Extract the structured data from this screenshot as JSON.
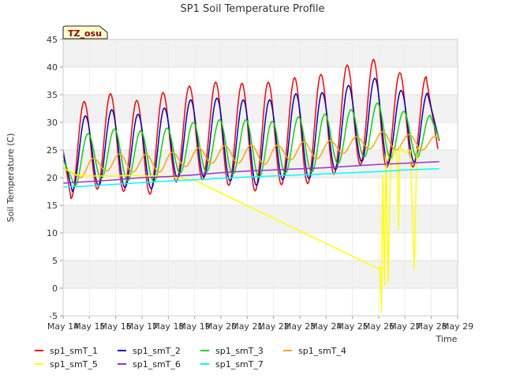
{
  "chart_data": {
    "type": "line",
    "title": "SP1 Soil Temperature Profile",
    "xlabel": "Time",
    "ylabel": "Soil Temperature (C)",
    "ylim": [
      -5,
      45
    ],
    "yticks": [
      -5,
      0,
      5,
      10,
      15,
      20,
      25,
      30,
      35,
      40,
      45
    ],
    "xlim": [
      14,
      29
    ],
    "xticks": [
      {
        "v": 14,
        "label": "May 14"
      },
      {
        "v": 15,
        "label": "May 15"
      },
      {
        "v": 16,
        "label": "May 16"
      },
      {
        "v": 17,
        "label": "May 17"
      },
      {
        "v": 18,
        "label": "May 18"
      },
      {
        "v": 19,
        "label": "May 19"
      },
      {
        "v": 20,
        "label": "May 20"
      },
      {
        "v": 21,
        "label": "May 21"
      },
      {
        "v": 22,
        "label": "May 22"
      },
      {
        "v": 23,
        "label": "May 23"
      },
      {
        "v": 24,
        "label": "May 24"
      },
      {
        "v": 25,
        "label": "May 25"
      },
      {
        "v": 26,
        "label": "May 26"
      },
      {
        "v": 27,
        "label": "May 27"
      },
      {
        "v": 28,
        "label": "May 28"
      },
      {
        "v": 29,
        "label": "May 29"
      }
    ],
    "site_label": "TZ_osu",
    "grid": "horizontal bands",
    "legend_position": "bottom",
    "series": [
      {
        "name": "sp1_smT_1",
        "color": "#ff0000",
        "daily_peaks": [
          [
            14.8,
            33.8
          ],
          [
            15.8,
            35.2
          ],
          [
            16.8,
            34.0
          ],
          [
            17.8,
            35.4
          ],
          [
            18.8,
            36.6
          ],
          [
            19.8,
            37.3
          ],
          [
            20.8,
            37.1
          ],
          [
            21.8,
            37.3
          ],
          [
            22.8,
            38.1
          ],
          [
            23.8,
            38.7
          ],
          [
            24.8,
            40.4
          ],
          [
            25.8,
            41.4
          ],
          [
            26.8,
            39.0
          ],
          [
            27.8,
            38.3
          ]
        ],
        "daily_troughs": [
          [
            14.3,
            16.2
          ],
          [
            15.3,
            17.9
          ],
          [
            16.3,
            17.5
          ],
          [
            17.3,
            17.0
          ],
          [
            18.3,
            19.2
          ],
          [
            19.3,
            19.6
          ],
          [
            20.3,
            18.6
          ],
          [
            21.3,
            17.6
          ],
          [
            22.3,
            18.7
          ],
          [
            23.3,
            18.9
          ],
          [
            24.3,
            20.6
          ],
          [
            25.3,
            22.3
          ],
          [
            26.3,
            21.8
          ],
          [
            27.3,
            21.9
          ]
        ],
        "end": [
          28.25,
          25.2
        ]
      },
      {
        "name": "sp1_smT_2",
        "color": "#0000cc",
        "daily_peaks": [
          [
            14.85,
            31.2
          ],
          [
            15.85,
            32.3
          ],
          [
            16.85,
            31.5
          ],
          [
            17.85,
            32.6
          ],
          [
            18.85,
            34.1
          ],
          [
            19.85,
            34.4
          ],
          [
            20.85,
            34.1
          ],
          [
            21.85,
            34.1
          ],
          [
            22.85,
            35.2
          ],
          [
            23.85,
            35.4
          ],
          [
            24.85,
            36.7
          ],
          [
            25.85,
            38.0
          ],
          [
            26.85,
            35.8
          ],
          [
            27.85,
            35.3
          ]
        ],
        "daily_troughs": [
          [
            14.35,
            17.5
          ],
          [
            15.35,
            18.5
          ],
          [
            16.35,
            18.2
          ],
          [
            17.35,
            18.0
          ],
          [
            18.35,
            19.9
          ],
          [
            19.35,
            20.1
          ],
          [
            20.35,
            19.4
          ],
          [
            21.35,
            18.6
          ],
          [
            22.35,
            19.6
          ],
          [
            23.35,
            19.8
          ],
          [
            24.35,
            21.4
          ],
          [
            25.35,
            22.9
          ],
          [
            26.35,
            22.6
          ],
          [
            27.35,
            22.8
          ]
        ],
        "end": [
          28.3,
          26.7
        ]
      },
      {
        "name": "sp1_smT_3",
        "color": "#00dd00",
        "daily_peaks": [
          [
            14.95,
            28.0
          ],
          [
            15.95,
            28.8
          ],
          [
            16.95,
            28.5
          ],
          [
            17.95,
            29.0
          ],
          [
            18.95,
            30.0
          ],
          [
            19.95,
            30.5
          ],
          [
            20.95,
            30.5
          ],
          [
            21.95,
            30.2
          ],
          [
            22.95,
            31.0
          ],
          [
            23.95,
            31.5
          ],
          [
            24.95,
            32.3
          ],
          [
            25.95,
            33.5
          ],
          [
            26.95,
            32.0
          ],
          [
            27.95,
            31.3
          ]
        ],
        "daily_troughs": [
          [
            14.45,
            18.5
          ],
          [
            15.45,
            19.8
          ],
          [
            16.45,
            19.4
          ],
          [
            17.45,
            19.2
          ],
          [
            18.45,
            20.8
          ],
          [
            19.45,
            21.0
          ],
          [
            20.45,
            20.6
          ],
          [
            21.45,
            20.0
          ],
          [
            22.45,
            20.8
          ],
          [
            23.45,
            21.0
          ],
          [
            24.45,
            22.5
          ],
          [
            25.45,
            23.7
          ],
          [
            26.45,
            23.5
          ],
          [
            27.45,
            23.6
          ]
        ],
        "end": [
          28.3,
          27.0
        ]
      },
      {
        "name": "sp1_smT_4",
        "color": "#ffa500",
        "daily_peaks": [
          [
            15.15,
            23.5
          ],
          [
            16.15,
            24.3
          ],
          [
            17.15,
            24.2
          ],
          [
            18.15,
            24.6
          ],
          [
            19.15,
            25.4
          ],
          [
            20.15,
            25.8
          ],
          [
            21.15,
            25.9
          ],
          [
            22.15,
            25.9
          ],
          [
            23.15,
            26.5
          ],
          [
            24.15,
            26.7
          ],
          [
            25.15,
            27.4
          ],
          [
            26.15,
            28.3
          ],
          [
            27.15,
            27.8
          ],
          [
            28.15,
            27.5
          ]
        ],
        "daily_troughs": [
          [
            14.65,
            20.0
          ],
          [
            15.65,
            21.2
          ],
          [
            16.65,
            21.0
          ],
          [
            17.65,
            21.0
          ],
          [
            18.65,
            22.0
          ],
          [
            19.65,
            22.6
          ],
          [
            20.65,
            22.6
          ],
          [
            21.65,
            22.4
          ],
          [
            22.65,
            23.2
          ],
          [
            23.65,
            23.4
          ],
          [
            24.65,
            24.4
          ],
          [
            25.65,
            25.2
          ],
          [
            26.65,
            25.0
          ],
          [
            27.65,
            25.0
          ]
        ],
        "end": [
          28.3,
          27.0
        ]
      },
      {
        "name": "sp1_smT_5",
        "color": "#ffff00",
        "points": [
          [
            14.0,
            21.8
          ],
          [
            14.5,
            20.5
          ],
          [
            15.0,
            20.3
          ],
          [
            15.5,
            20.3
          ],
          [
            16.0,
            20.3
          ],
          [
            16.5,
            20.4
          ],
          [
            17.0,
            20.3
          ],
          [
            17.5,
            20.3
          ],
          [
            18.0,
            20.2
          ],
          [
            18.5,
            19.9
          ],
          [
            19.0,
            19.5
          ],
          [
            26.0,
            3.5
          ],
          [
            26.05,
            3.8
          ],
          [
            26.1,
            -4.3
          ],
          [
            26.15,
            20.5
          ],
          [
            26.22,
            0.5
          ],
          [
            26.28,
            24.5
          ],
          [
            26.36,
            1.0
          ],
          [
            26.45,
            22.0
          ],
          [
            26.6,
            25.0
          ],
          [
            26.7,
            24.0
          ],
          [
            26.75,
            10.5
          ],
          [
            26.8,
            25.5
          ],
          [
            27.0,
            24.5
          ],
          [
            27.2,
            25.0
          ],
          [
            27.35,
            3.5
          ],
          [
            27.45,
            25.2
          ],
          [
            27.6,
            25.4
          ]
        ]
      },
      {
        "name": "sp1_smT_6",
        "color": "#9933cc",
        "points": [
          [
            14.0,
            19.0
          ],
          [
            15.0,
            19.3
          ],
          [
            16.0,
            19.6
          ],
          [
            17.0,
            20.0
          ],
          [
            18.0,
            20.2
          ],
          [
            19.0,
            20.5
          ],
          [
            20.0,
            20.9
          ],
          [
            21.0,
            21.2
          ],
          [
            22.0,
            21.4
          ],
          [
            23.0,
            21.6
          ],
          [
            24.0,
            21.8
          ],
          [
            25.0,
            22.1
          ],
          [
            26.0,
            22.4
          ],
          [
            27.0,
            22.6
          ],
          [
            28.3,
            22.9
          ]
        ]
      },
      {
        "name": "sp1_smT_7",
        "color": "#00ffff",
        "points": [
          [
            14.0,
            18.3
          ],
          [
            15.0,
            18.5
          ],
          [
            16.0,
            18.8
          ],
          [
            17.0,
            19.1
          ],
          [
            18.0,
            19.4
          ],
          [
            19.0,
            19.6
          ],
          [
            20.0,
            19.9
          ],
          [
            21.0,
            20.1
          ],
          [
            22.0,
            20.3
          ],
          [
            23.0,
            20.5
          ],
          [
            24.0,
            20.7
          ],
          [
            25.0,
            20.9
          ],
          [
            26.0,
            21.1
          ],
          [
            27.0,
            21.4
          ],
          [
            28.3,
            21.6
          ]
        ]
      }
    ]
  }
}
